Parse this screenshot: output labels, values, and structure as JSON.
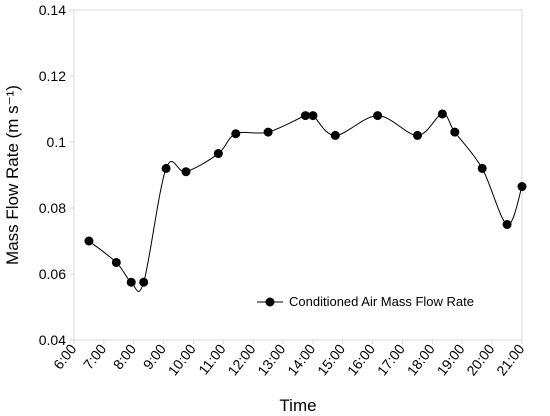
{
  "chart_data": {
    "type": "line",
    "title": "",
    "xlabel": "Time",
    "ylabel": "Mass Flow Rate (m s⁻¹)",
    "ylim": [
      0.04,
      0.14
    ],
    "yticks": [
      "0.04",
      "0.06",
      "0.08",
      "0.1",
      "0.12",
      "0.14"
    ],
    "xlim": [
      "6:00",
      "21:00"
    ],
    "xticks": [
      "6:00",
      "7:00",
      "8:00",
      "9:00",
      "10:00",
      "11:00",
      "12:00",
      "13:00",
      "14:00",
      "15:00",
      "16:00",
      "17:00",
      "18:00",
      "19:00",
      "20:00",
      "21:00"
    ],
    "grid": false,
    "legend_position": "bottom-right",
    "smooth": true,
    "series": [
      {
        "name": "Conditioned Air Mass Flow Rate",
        "color": "#000000",
        "marker": "circle",
        "x": [
          "6:30",
          "7:25",
          "7:55",
          "8:20",
          "9:05",
          "9:45",
          "10:50",
          "11:25",
          "12:30",
          "13:45",
          "14:00",
          "14:45",
          "16:10",
          "17:30",
          "18:20",
          "18:45",
          "19:40",
          "20:30",
          "21:00"
        ],
        "values": [
          0.07,
          0.0635,
          0.0575,
          0.0575,
          0.092,
          0.091,
          0.0965,
          0.1025,
          0.103,
          0.108,
          0.108,
          0.102,
          0.108,
          0.102,
          0.1085,
          0.103,
          0.092,
          0.075,
          0.0865
        ]
      }
    ]
  }
}
